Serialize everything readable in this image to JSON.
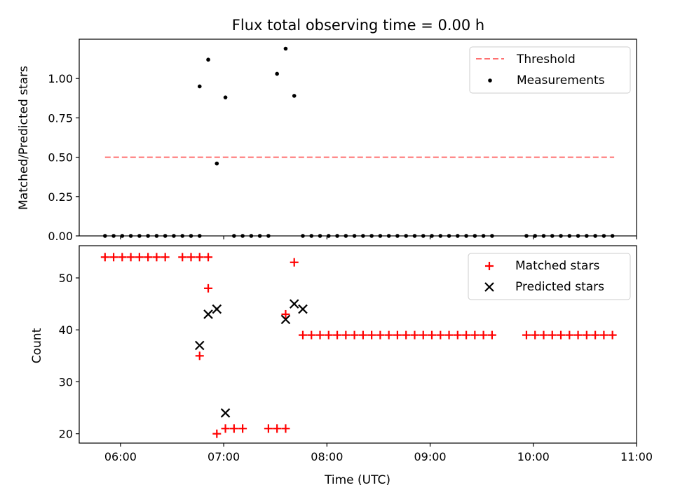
{
  "chart_data": [
    {
      "type": "scatter",
      "title": "Flux total observing time = 0.00 h",
      "xlabel": "",
      "ylabel": "Matched/Predicted stars",
      "ylim": [
        0,
        1.25
      ],
      "xlim": [
        "05:36",
        "11:00"
      ],
      "yticks": [
        "0.00",
        "0.25",
        "0.50",
        "0.75",
        "1.00"
      ],
      "grid": false,
      "legend_position": "upper right",
      "series": [
        {
          "name": "Threshold",
          "style": "dashed-line",
          "color": "#ff7070",
          "x": [
            "05:51",
            "10:47"
          ],
          "y": [
            0.5,
            0.5
          ]
        },
        {
          "name": "Measurements",
          "style": "dot",
          "color": "#000000",
          "x": [
            "05:51",
            "05:56",
            "06:01",
            "06:06",
            "06:11",
            "06:16",
            "06:21",
            "06:26",
            "06:31",
            "06:36",
            "06:41",
            "06:46",
            "06:46",
            "06:51",
            "06:56",
            "07:01",
            "07:06",
            "07:11",
            "07:16",
            "07:21",
            "07:26",
            "07:31",
            "07:36",
            "07:41",
            "07:46",
            "07:51",
            "07:56",
            "08:01",
            "08:06",
            "08:11",
            "08:16",
            "08:21",
            "08:26",
            "08:31",
            "08:36",
            "08:41",
            "08:46",
            "08:51",
            "08:56",
            "09:01",
            "09:06",
            "09:11",
            "09:16",
            "09:21",
            "09:26",
            "09:31",
            "09:36",
            "09:56",
            "10:01",
            "10:06",
            "10:11",
            "10:16",
            "10:21",
            "10:26",
            "10:31",
            "10:36",
            "10:41",
            "10:46"
          ],
          "y": [
            0,
            0,
            0,
            0,
            0,
            0,
            0,
            0,
            0,
            0,
            0,
            0.95,
            0,
            1.12,
            0.46,
            0.88,
            0,
            0,
            0,
            0,
            0,
            1.03,
            1.19,
            0.89,
            0,
            0,
            0,
            0,
            0,
            0,
            0,
            0,
            0,
            0,
            0,
            0,
            0,
            0,
            0,
            0,
            0,
            0,
            0,
            0,
            0,
            0,
            0,
            0,
            0,
            0,
            0,
            0,
            0,
            0,
            0,
            0,
            0,
            0
          ]
        }
      ]
    },
    {
      "type": "scatter",
      "title": "",
      "xlabel": "Time (UTC)",
      "ylabel": "Count",
      "ylim": [
        18.2,
        56.2
      ],
      "xlim": [
        "05:36",
        "11:00"
      ],
      "yticks": [
        "20",
        "30",
        "40",
        "50"
      ],
      "xticks": [
        "06:00",
        "07:00",
        "08:00",
        "09:00",
        "10:00",
        "11:00"
      ],
      "grid": false,
      "legend_position": "upper right",
      "series": [
        {
          "name": "Matched stars",
          "marker": "plus",
          "color": "#ff0000",
          "x": [
            "05:51",
            "05:56",
            "06:01",
            "06:06",
            "06:11",
            "06:16",
            "06:21",
            "06:26",
            "06:36",
            "06:41",
            "06:46",
            "06:51",
            "06:46",
            "06:51",
            "06:56",
            "07:01",
            "07:06",
            "07:11",
            "07:26",
            "07:31",
            "07:36",
            "07:36",
            "07:41",
            "07:46",
            "07:51",
            "07:56",
            "08:01",
            "08:06",
            "08:11",
            "08:16",
            "08:21",
            "08:26",
            "08:31",
            "08:36",
            "08:41",
            "08:46",
            "08:51",
            "08:56",
            "09:01",
            "09:06",
            "09:11",
            "09:16",
            "09:21",
            "09:26",
            "09:31",
            "09:36",
            "09:56",
            "10:01",
            "10:06",
            "10:11",
            "10:16",
            "10:21",
            "10:26",
            "10:31",
            "10:36",
            "10:41",
            "10:46"
          ],
          "y": [
            54,
            54,
            54,
            54,
            54,
            54,
            54,
            54,
            54,
            54,
            54,
            54,
            35,
            48,
            20,
            21,
            21,
            21,
            21,
            21,
            21,
            43,
            53,
            39,
            39,
            39,
            39,
            39,
            39,
            39,
            39,
            39,
            39,
            39,
            39,
            39,
            39,
            39,
            39,
            39,
            39,
            39,
            39,
            39,
            39,
            39,
            39,
            39,
            39,
            39,
            39,
            39,
            39,
            39,
            39,
            39,
            39
          ]
        },
        {
          "name": "Predicted stars",
          "marker": "x",
          "color": "#000000",
          "x": [
            "06:46",
            "06:51",
            "06:56",
            "07:01",
            "07:36",
            "07:41",
            "07:46"
          ],
          "y": [
            37,
            43,
            44,
            24,
            42,
            45,
            44
          ]
        }
      ]
    }
  ]
}
